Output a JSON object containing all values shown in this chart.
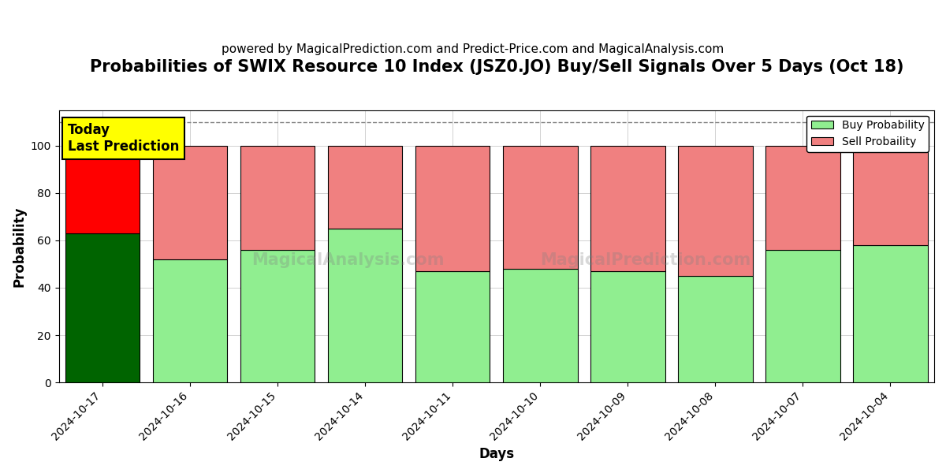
{
  "title": "Probabilities of SWIX Resource 10 Index (JSZ0.JO) Buy/Sell Signals Over 5 Days (Oct 18)",
  "subtitle": "powered by MagicalPrediction.com and Predict-Price.com and MagicalAnalysis.com",
  "xlabel": "Days",
  "ylabel": "Probability",
  "categories": [
    "2024-10-17",
    "2024-10-16",
    "2024-10-15",
    "2024-10-14",
    "2024-10-11",
    "2024-10-10",
    "2024-10-09",
    "2024-10-08",
    "2024-10-07",
    "2024-10-04"
  ],
  "buy_values": [
    63,
    52,
    56,
    65,
    47,
    48,
    47,
    45,
    56,
    58
  ],
  "sell_values": [
    37,
    48,
    44,
    35,
    53,
    52,
    53,
    55,
    44,
    42
  ],
  "today_buy_color": "#006400",
  "today_sell_color": "#FF0000",
  "other_buy_color": "#90EE90",
  "other_sell_color": "#F08080",
  "today_annotation_bg": "#FFFF00",
  "today_annotation_text": "Today\nLast Prediction",
  "dashed_line_y": 110,
  "ylim": [
    0,
    115
  ],
  "legend_buy_label": "Buy Probability",
  "legend_sell_label": "Sell Probaility",
  "bar_edgecolor": "black",
  "bar_linewidth": 0.8,
  "figsize": [
    12.0,
    6.0
  ],
  "dpi": 100,
  "background_color": "white",
  "grid_color": "gray",
  "title_fontsize": 15,
  "subtitle_fontsize": 11,
  "axis_label_fontsize": 12,
  "tick_fontsize": 10,
  "legend_fontsize": 10,
  "annotation_fontsize": 12
}
